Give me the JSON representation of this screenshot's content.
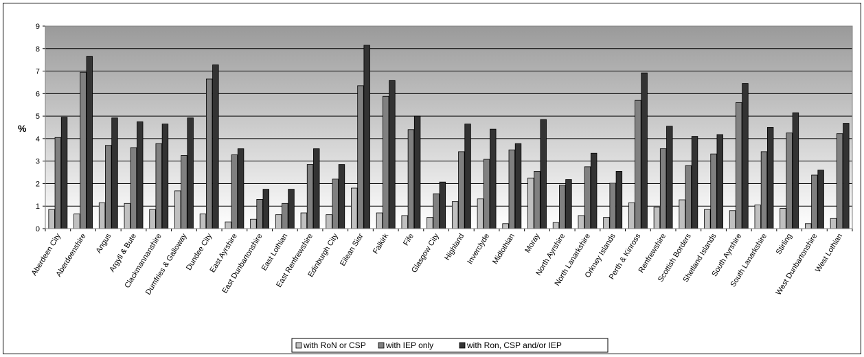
{
  "chart_data": {
    "type": "bar",
    "title": "",
    "xlabel": "",
    "ylabel": "%",
    "ylim": [
      0,
      9
    ],
    "yticks": [
      0,
      1,
      2,
      3,
      4,
      5,
      6,
      7,
      8,
      9
    ],
    "grid": true,
    "legend_position": "bottom",
    "categories": [
      "Aberdeen City",
      "Aberdeenshire",
      "Angus",
      "Argyll & Bute",
      "Clackmannanshire",
      "Dumfries & Galloway",
      "Dundee City",
      "East Ayrshire",
      "East Dunbartonshire",
      "East Lothian",
      "East Renfrewshire",
      "Edinburgh City",
      "Eilean Siar",
      "Falkirk",
      "Fife",
      "Glasgow City",
      "Highland",
      "Inverclyde",
      "Midlothian",
      "Moray",
      "North Ayrshire",
      "North Lanarkshire",
      "Orkney Islands",
      "Perth & Kinross",
      "Renfrewshire",
      "Scottish Borders",
      "Shetland Islands",
      "South Ayrshire",
      "South Lanarkshire",
      "Stirling",
      "West Dunbartonshire",
      "West Lothian"
    ],
    "series": [
      {
        "name": "with RoN or CSP",
        "color": "#c0c0c0",
        "values": [
          0.85,
          0.65,
          1.15,
          1.12,
          0.85,
          1.68,
          0.65,
          0.3,
          0.42,
          0.62,
          0.7,
          0.62,
          1.8,
          0.7,
          0.58,
          0.5,
          1.2,
          1.32,
          0.22,
          2.25,
          0.27,
          0.58,
          0.5,
          1.15,
          0.95,
          1.28,
          0.85,
          0.8,
          1.05,
          0.9,
          0.22,
          0.45
        ]
      },
      {
        "name": "with IEP only",
        "color": "#808080",
        "values": [
          4.05,
          6.95,
          3.7,
          3.6,
          3.78,
          3.25,
          6.65,
          3.28,
          1.3,
          1.12,
          2.85,
          2.2,
          6.35,
          5.88,
          4.4,
          1.55,
          3.42,
          3.08,
          3.5,
          2.55,
          1.93,
          2.75,
          2.02,
          5.7,
          3.55,
          2.8,
          3.32,
          5.6,
          3.42,
          4.25,
          2.38,
          4.22
        ]
      },
      {
        "name": "with Ron, CSP and/or IEP",
        "color": "#333333",
        "values": [
          4.95,
          7.65,
          4.92,
          4.75,
          4.65,
          4.92,
          7.28,
          3.55,
          1.75,
          1.75,
          3.55,
          2.85,
          8.15,
          6.58,
          5.0,
          2.07,
          4.65,
          4.42,
          3.78,
          4.85,
          2.18,
          3.35,
          2.55,
          6.92,
          4.55,
          4.1,
          4.18,
          6.45,
          4.5,
          5.15,
          2.6,
          4.68
        ]
      }
    ]
  }
}
